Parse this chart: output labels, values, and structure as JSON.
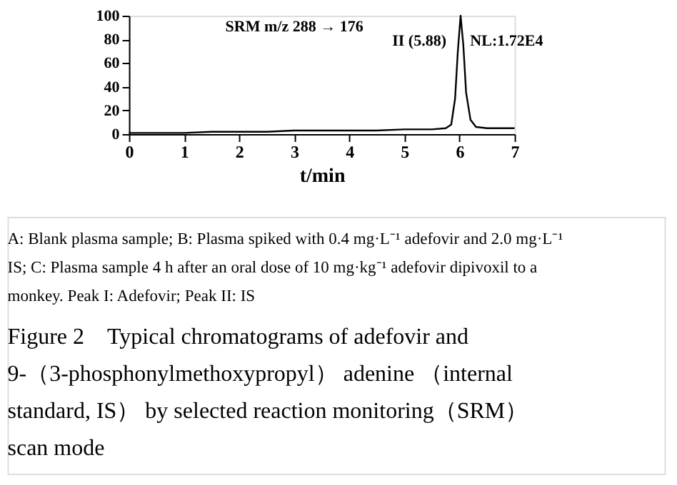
{
  "chart_data": {
    "type": "line",
    "title": "Figure 2　Typical chromatograms of adefovir and 9-（3-phosphonylmethoxypropyl） adenine （internal standard, IS） by selected reaction monitoring（SRM） scan mode",
    "xlabel": "t/min",
    "x": [
      0,
      0.5,
      1,
      1.5,
      2,
      2.5,
      3,
      3.5,
      4,
      4.5,
      5,
      5.5,
      5.75,
      5.85,
      5.92,
      5.97,
      6.02,
      6.07,
      6.12,
      6.2,
      6.3,
      6.5,
      7
    ],
    "series": [
      {
        "color": "#000000",
        "values": [
          1,
          1,
          1,
          2,
          2,
          2,
          3,
          3,
          3,
          3,
          4,
          4,
          5,
          8,
          30,
          70,
          100,
          75,
          35,
          12,
          6,
          5,
          5
        ]
      }
    ],
    "xlim": [
      0,
      7
    ],
    "xticks": [
      0,
      1,
      2,
      3,
      4,
      5,
      6,
      7
    ],
    "ylim": [
      0,
      100
    ],
    "yticks": [
      0,
      20,
      40,
      60,
      80,
      100
    ],
    "grid": false,
    "marker": "none",
    "line_style": "solid",
    "annotations": [
      "SRM m/z 288 → 176",
      {
        "text": "II (5.88)",
        "x": 6.02,
        "y": 100
      },
      "NL:1.72E4",
      "A: Blank plasma sample; B: Plasma spiked with 0.4 mg·L⁻¹ adefovir and 2.0 mg·L⁻¹ IS; C: Plasma sample 4 h after an oral dose of 10 mg·kg⁻¹ adefovir dipivoxil to a monkey. Peak I: Adefovir; Peak II: IS"
    ]
  }
}
